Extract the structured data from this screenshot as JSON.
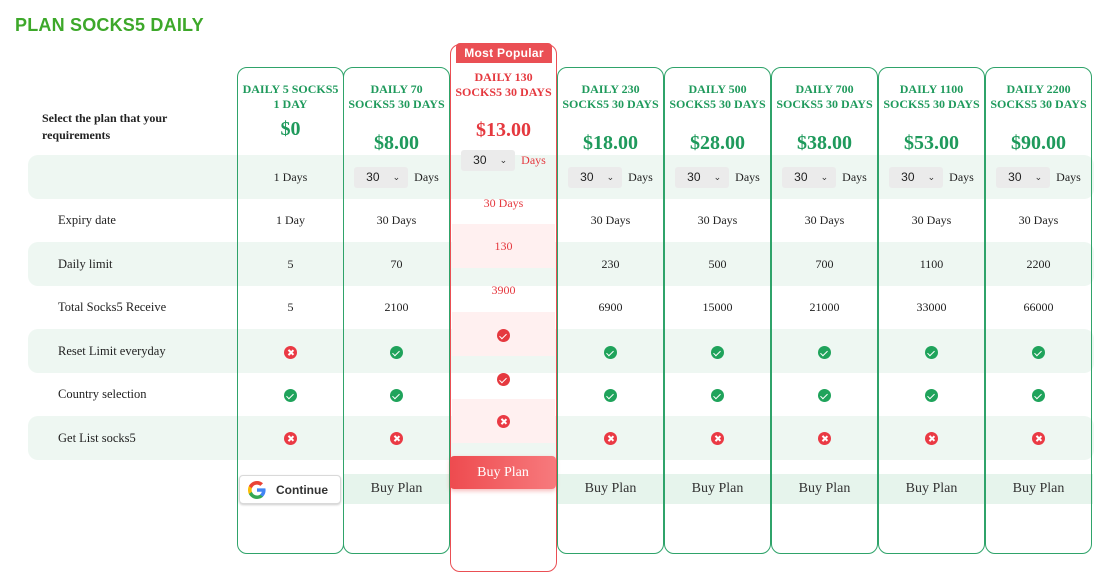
{
  "page": {
    "title": "PLAN SOCKS5 DAILY",
    "select_label": "Select the plan that your requirements",
    "popular_badge": "Most Popular"
  },
  "row_labels": [
    "Expiry date",
    "Daily limit",
    "Total Socks5 Receive",
    "Reset Limit everyday",
    "Country selection",
    "Get List socks5"
  ],
  "plans": [
    {
      "name": "DAILY 5 SOCKS5 1 DAY",
      "price": "$0",
      "duration": "1 Days",
      "select": "",
      "unit": "",
      "expiry": "1 Day",
      "daily_limit": "5",
      "total": "5",
      "reset": "cross",
      "country": "check",
      "list": "cross",
      "action": "Continue"
    },
    {
      "name": "DAILY 70 SOCKS5 30 DAYS",
      "price": "$8.00",
      "duration": "",
      "select": "30",
      "unit": "Days",
      "expiry": "30 Days",
      "daily_limit": "70",
      "total": "2100",
      "reset": "check",
      "country": "check",
      "list": "cross",
      "action": "Buy Plan"
    },
    {
      "name": "DAILY 130 SOCKS5 30 DAYS",
      "price": "$13.00",
      "duration": "",
      "select": "30",
      "unit": "Days",
      "expiry": "30 Days",
      "daily_limit": "130",
      "total": "3900",
      "reset": "check",
      "country": "check",
      "list": "cross",
      "action": "Buy Plan"
    },
    {
      "name": "DAILY 230 SOCKS5 30 DAYS",
      "price": "$18.00",
      "duration": "",
      "select": "30",
      "unit": "Days",
      "expiry": "30 Days",
      "daily_limit": "230",
      "total": "6900",
      "reset": "check",
      "country": "check",
      "list": "cross",
      "action": "Buy Plan"
    },
    {
      "name": "DAILY 500 SOCKS5 30 DAYS",
      "price": "$28.00",
      "duration": "",
      "select": "30",
      "unit": "Days",
      "expiry": "30 Days",
      "daily_limit": "500",
      "total": "15000",
      "reset": "check",
      "country": "check",
      "list": "cross",
      "action": "Buy Plan"
    },
    {
      "name": "DAILY 700 SOCKS5 30 DAYS",
      "price": "$38.00",
      "duration": "",
      "select": "30",
      "unit": "Days",
      "expiry": "30 Days",
      "daily_limit": "700",
      "total": "21000",
      "reset": "check",
      "country": "check",
      "list": "cross",
      "action": "Buy Plan"
    },
    {
      "name": "DAILY 1100 SOCKS5 30 DAYS",
      "price": "$53.00",
      "duration": "",
      "select": "30",
      "unit": "Days",
      "expiry": "30 Days",
      "daily_limit": "1100",
      "total": "33000",
      "reset": "check",
      "country": "check",
      "list": "cross",
      "action": "Buy Plan"
    },
    {
      "name": "DAILY 2200 SOCKS5 30 DAYS",
      "price": "$90.00",
      "duration": "",
      "select": "30",
      "unit": "Days",
      "expiry": "30 Days",
      "daily_limit": "2200",
      "total": "66000",
      "reset": "check",
      "country": "check",
      "list": "cross",
      "action": "Buy Plan"
    }
  ],
  "colors": {
    "brand_green": "#3da82a",
    "plan_green": "#1f9a5c",
    "popular_red": "#e5393f"
  }
}
